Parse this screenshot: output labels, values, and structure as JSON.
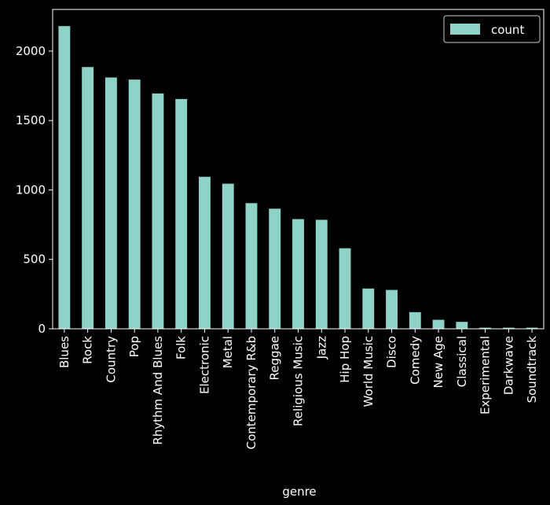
{
  "chart_data": {
    "type": "bar",
    "xlabel": "genre",
    "ylabel": "",
    "ylim": [
      0,
      2300
    ],
    "yticks": [
      0,
      500,
      1000,
      1500,
      2000
    ],
    "grid": false,
    "legend_position": "top-right",
    "colors": {
      "background": "#000000",
      "bar": "#8dd3c7",
      "axis": "#ffffff",
      "text": "#ffffff"
    },
    "categories": [
      "Blues",
      "Rock",
      "Country",
      "Pop",
      "Rhythm And Blues",
      "Folk",
      "Electronic",
      "Metal",
      "Contemporary R&b",
      "Reggae",
      "Religious Music",
      "Jazz",
      "Hip Hop",
      "World Music",
      "Disco",
      "Comedy",
      "New Age",
      "Classical",
      "Experimental",
      "Darkwave",
      "Soundtrack"
    ],
    "series": [
      {
        "name": "count",
        "values": [
          2180,
          1885,
          1810,
          1795,
          1695,
          1655,
          1095,
          1045,
          905,
          865,
          790,
          785,
          580,
          290,
          280,
          120,
          65,
          50,
          8,
          8,
          8
        ]
      }
    ]
  }
}
